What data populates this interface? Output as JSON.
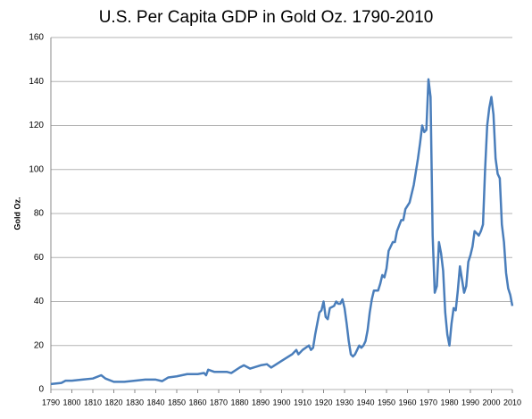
{
  "chart_data": {
    "type": "line",
    "title": "U.S. Per Capita GDP in Gold Oz. 1790-2010",
    "y_label": "Gold Oz.",
    "x": [
      1790,
      1795,
      1797,
      1800,
      1805,
      1810,
      1814,
      1816,
      1820,
      1825,
      1830,
      1835,
      1840,
      1843,
      1846,
      1850,
      1855,
      1860,
      1863,
      1864,
      1865,
      1868,
      1870,
      1874,
      1876,
      1880,
      1882,
      1885,
      1890,
      1893,
      1895,
      1900,
      1905,
      1907,
      1908,
      1910,
      1913,
      1914,
      1915,
      1916,
      1917,
      1918,
      1919,
      1920,
      1921,
      1922,
      1923,
      1925,
      1926,
      1927,
      1928,
      1929,
      1930,
      1931,
      1932,
      1933,
      1934,
      1935,
      1936,
      1937,
      1938,
      1939,
      1940,
      1941,
      1942,
      1943,
      1944,
      1946,
      1947,
      1948,
      1949,
      1950,
      1951,
      1953,
      1954,
      1955,
      1957,
      1958,
      1959,
      1961,
      1963,
      1965,
      1966,
      1967,
      1968,
      1969,
      1970,
      1971,
      1972,
      1973,
      1974,
      1975,
      1976,
      1977,
      1978,
      1979,
      1980,
      1981,
      1982,
      1983,
      1984,
      1985,
      1986,
      1987,
      1988,
      1989,
      1990,
      1991,
      1992,
      1993,
      1994,
      1995,
      1996,
      1997,
      1998,
      1999,
      2000,
      2001,
      2002,
      2003,
      2004,
      2005,
      2006,
      2007,
      2008,
      2009,
      2010
    ],
    "series": [
      {
        "name": "Gold Oz.",
        "color": "#4a7ebb",
        "values": [
          2.5,
          3,
          4,
          4,
          4.5,
          5,
          6.5,
          5,
          3.5,
          3.5,
          4,
          4.5,
          4.5,
          3.8,
          5.5,
          6,
          7,
          7,
          7.5,
          6.5,
          9,
          8,
          8,
          8,
          7.5,
          10,
          11,
          9.5,
          11,
          11.5,
          10,
          13,
          16,
          18,
          16,
          18,
          20,
          18,
          19,
          25,
          30,
          35,
          36,
          40,
          33,
          32,
          37,
          38,
          40,
          39,
          39,
          41,
          37,
          30,
          22,
          16,
          15,
          16,
          18,
          20,
          19,
          20,
          22,
          27,
          35,
          41,
          45,
          45,
          48,
          52,
          51,
          55,
          63,
          67,
          67,
          72,
          77,
          77,
          82,
          85,
          93,
          105,
          112,
          120,
          117,
          118,
          141,
          133,
          70,
          44,
          47,
          67,
          62,
          54,
          35,
          25,
          20,
          30,
          37,
          36,
          45,
          56,
          50,
          44,
          47,
          58,
          61,
          65,
          72,
          71,
          70,
          72,
          75,
          100,
          120,
          128,
          133,
          125,
          105,
          98,
          96,
          75,
          67,
          53,
          46,
          43,
          38
        ]
      }
    ],
    "xlim": [
      1790,
      2010
    ],
    "xticks": [
      1790,
      1800,
      1810,
      1820,
      1830,
      1840,
      1850,
      1860,
      1870,
      1880,
      1890,
      1900,
      1910,
      1920,
      1930,
      1940,
      1950,
      1960,
      1970,
      1980,
      1990,
      2000,
      2010
    ],
    "ylim": [
      0,
      160
    ],
    "yticks": [
      0,
      20,
      40,
      60,
      80,
      100,
      120,
      140,
      160
    ],
    "grid": true
  }
}
